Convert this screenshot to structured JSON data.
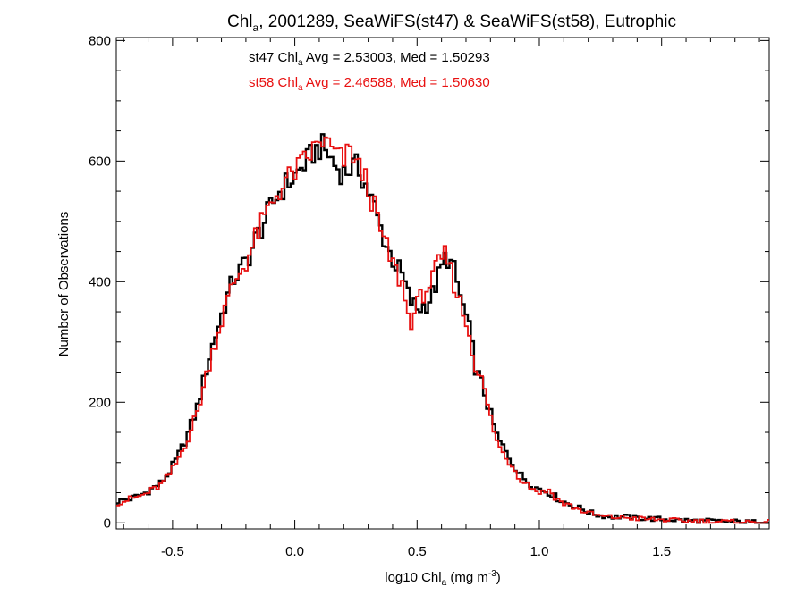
{
  "chart_data": {
    "type": "histogram-step",
    "title": {
      "prefix": "Chl",
      "sub": "a",
      "suffix": ", 2001289, SeaWiFS(st47) & SeaWiFS(st58), Eutrophic"
    },
    "xlabel": {
      "prefix": "log10 Chl",
      "sub": "a",
      "mid": " (mg m",
      "sup": "-3",
      "suffix": ")"
    },
    "ylabel": "Number of Observations",
    "xlim": [
      -0.73,
      1.94
    ],
    "ylim": [
      -10,
      805
    ],
    "x_ticks": [
      -0.5,
      0.0,
      0.5,
      1.0,
      1.5
    ],
    "x_tick_labels": [
      "-0.5",
      "0.0",
      "0.5",
      "1.0",
      "1.5"
    ],
    "y_ticks": [
      0,
      200,
      400,
      600,
      800
    ],
    "y_tick_labels": [
      "0",
      "200",
      "400",
      "600",
      "800"
    ],
    "grid": false,
    "annotations": [
      {
        "prefix": "st47 Chl",
        "sub": "a",
        "suffix": " Avg = 2.53003, Med = 1.50293",
        "color": "#000000"
      },
      {
        "prefix": "st58 Chl",
        "sub": "a",
        "suffix": " Avg = 2.46588, Med = 1.50630",
        "color": "#e81010"
      }
    ],
    "bin_width": 0.0125,
    "series": [
      {
        "color": "#000000",
        "points": [
          [
            -0.73,
            35
          ],
          [
            -0.7,
            38
          ],
          [
            -0.67,
            40
          ],
          [
            -0.64,
            45
          ],
          [
            -0.61,
            50
          ],
          [
            -0.58,
            58
          ],
          [
            -0.55,
            65
          ],
          [
            -0.52,
            80
          ],
          [
            -0.49,
            100
          ],
          [
            -0.46,
            125
          ],
          [
            -0.43,
            155
          ],
          [
            -0.4,
            190
          ],
          [
            -0.37,
            240
          ],
          [
            -0.34,
            290
          ],
          [
            -0.31,
            330
          ],
          [
            -0.28,
            370
          ],
          [
            -0.25,
            405
          ],
          [
            -0.22,
            420
          ],
          [
            -0.19,
            440
          ],
          [
            -0.16,
            470
          ],
          [
            -0.13,
            495
          ],
          [
            -0.1,
            520
          ],
          [
            -0.07,
            545
          ],
          [
            -0.04,
            560
          ],
          [
            -0.01,
            570
          ],
          [
            0.02,
            585
          ],
          [
            0.05,
            600
          ],
          [
            0.08,
            615
          ],
          [
            0.11,
            625
          ],
          [
            0.14,
            610
          ],
          [
            0.17,
            590
          ],
          [
            0.2,
            580
          ],
          [
            0.23,
            590
          ],
          [
            0.26,
            590
          ],
          [
            0.29,
            560
          ],
          [
            0.32,
            530
          ],
          [
            0.35,
            490
          ],
          [
            0.38,
            455
          ],
          [
            0.41,
            430
          ],
          [
            0.44,
            410
          ],
          [
            0.47,
            370
          ],
          [
            0.5,
            355
          ],
          [
            0.53,
            360
          ],
          [
            0.56,
            375
          ],
          [
            0.59,
            410
          ],
          [
            0.62,
            445
          ],
          [
            0.65,
            420
          ],
          [
            0.68,
            370
          ],
          [
            0.71,
            330
          ],
          [
            0.74,
            255
          ],
          [
            0.77,
            225
          ],
          [
            0.8,
            180
          ],
          [
            0.83,
            140
          ],
          [
            0.86,
            120
          ],
          [
            0.89,
            100
          ],
          [
            0.92,
            80
          ],
          [
            0.95,
            70
          ],
          [
            0.98,
            60
          ],
          [
            1.01,
            55
          ],
          [
            1.04,
            50
          ],
          [
            1.07,
            42
          ],
          [
            1.1,
            35
          ],
          [
            1.13,
            30
          ],
          [
            1.16,
            25
          ],
          [
            1.19,
            20
          ],
          [
            1.22,
            15
          ],
          [
            1.25,
            12
          ],
          [
            1.3,
            10
          ],
          [
            1.35,
            10
          ],
          [
            1.4,
            8
          ],
          [
            1.45,
            7
          ],
          [
            1.5,
            6
          ],
          [
            1.55,
            5
          ],
          [
            1.6,
            4
          ],
          [
            1.65,
            3
          ],
          [
            1.7,
            3
          ],
          [
            1.75,
            2
          ],
          [
            1.8,
            2
          ],
          [
            1.85,
            1
          ],
          [
            1.9,
            1
          ],
          [
            1.94,
            1
          ]
        ]
      },
      {
        "color": "#e81010",
        "points": [
          [
            -0.73,
            33
          ],
          [
            -0.7,
            36
          ],
          [
            -0.67,
            40
          ],
          [
            -0.64,
            43
          ],
          [
            -0.61,
            48
          ],
          [
            -0.58,
            55
          ],
          [
            -0.55,
            62
          ],
          [
            -0.52,
            75
          ],
          [
            -0.49,
            95
          ],
          [
            -0.46,
            120
          ],
          [
            -0.43,
            148
          ],
          [
            -0.4,
            182
          ],
          [
            -0.37,
            230
          ],
          [
            -0.34,
            280
          ],
          [
            -0.31,
            320
          ],
          [
            -0.28,
            362
          ],
          [
            -0.25,
            398
          ],
          [
            -0.22,
            418
          ],
          [
            -0.19,
            440
          ],
          [
            -0.16,
            472
          ],
          [
            -0.13,
            500
          ],
          [
            -0.1,
            525
          ],
          [
            -0.07,
            548
          ],
          [
            -0.04,
            565
          ],
          [
            -0.01,
            578
          ],
          [
            0.02,
            590
          ],
          [
            0.05,
            605
          ],
          [
            0.08,
            620
          ],
          [
            0.11,
            635
          ],
          [
            0.14,
            625
          ],
          [
            0.17,
            610
          ],
          [
            0.2,
            600
          ],
          [
            0.23,
            620
          ],
          [
            0.26,
            590
          ],
          [
            0.29,
            570
          ],
          [
            0.32,
            530
          ],
          [
            0.35,
            485
          ],
          [
            0.38,
            450
          ],
          [
            0.41,
            420
          ],
          [
            0.44,
            395
          ],
          [
            0.47,
            330
          ],
          [
            0.5,
            360
          ],
          [
            0.53,
            385
          ],
          [
            0.56,
            400
          ],
          [
            0.59,
            430
          ],
          [
            0.62,
            445
          ],
          [
            0.65,
            400
          ],
          [
            0.68,
            360
          ],
          [
            0.71,
            320
          ],
          [
            0.74,
            260
          ],
          [
            0.77,
            230
          ],
          [
            0.8,
            175
          ],
          [
            0.83,
            130
          ],
          [
            0.86,
            110
          ],
          [
            0.89,
            95
          ],
          [
            0.92,
            75
          ],
          [
            0.95,
            65
          ],
          [
            0.98,
            55
          ],
          [
            1.01,
            50
          ],
          [
            1.04,
            55
          ],
          [
            1.07,
            40
          ],
          [
            1.1,
            32
          ],
          [
            1.13,
            28
          ],
          [
            1.16,
            22
          ],
          [
            1.19,
            18
          ],
          [
            1.22,
            14
          ],
          [
            1.25,
            11
          ],
          [
            1.3,
            9
          ],
          [
            1.35,
            9
          ],
          [
            1.4,
            7
          ],
          [
            1.45,
            6
          ],
          [
            1.5,
            5
          ],
          [
            1.55,
            4
          ],
          [
            1.6,
            3
          ],
          [
            1.65,
            3
          ],
          [
            1.7,
            2
          ],
          [
            1.75,
            2
          ],
          [
            1.8,
            1
          ],
          [
            1.85,
            1
          ],
          [
            1.9,
            1
          ],
          [
            1.94,
            1
          ]
        ]
      }
    ]
  }
}
